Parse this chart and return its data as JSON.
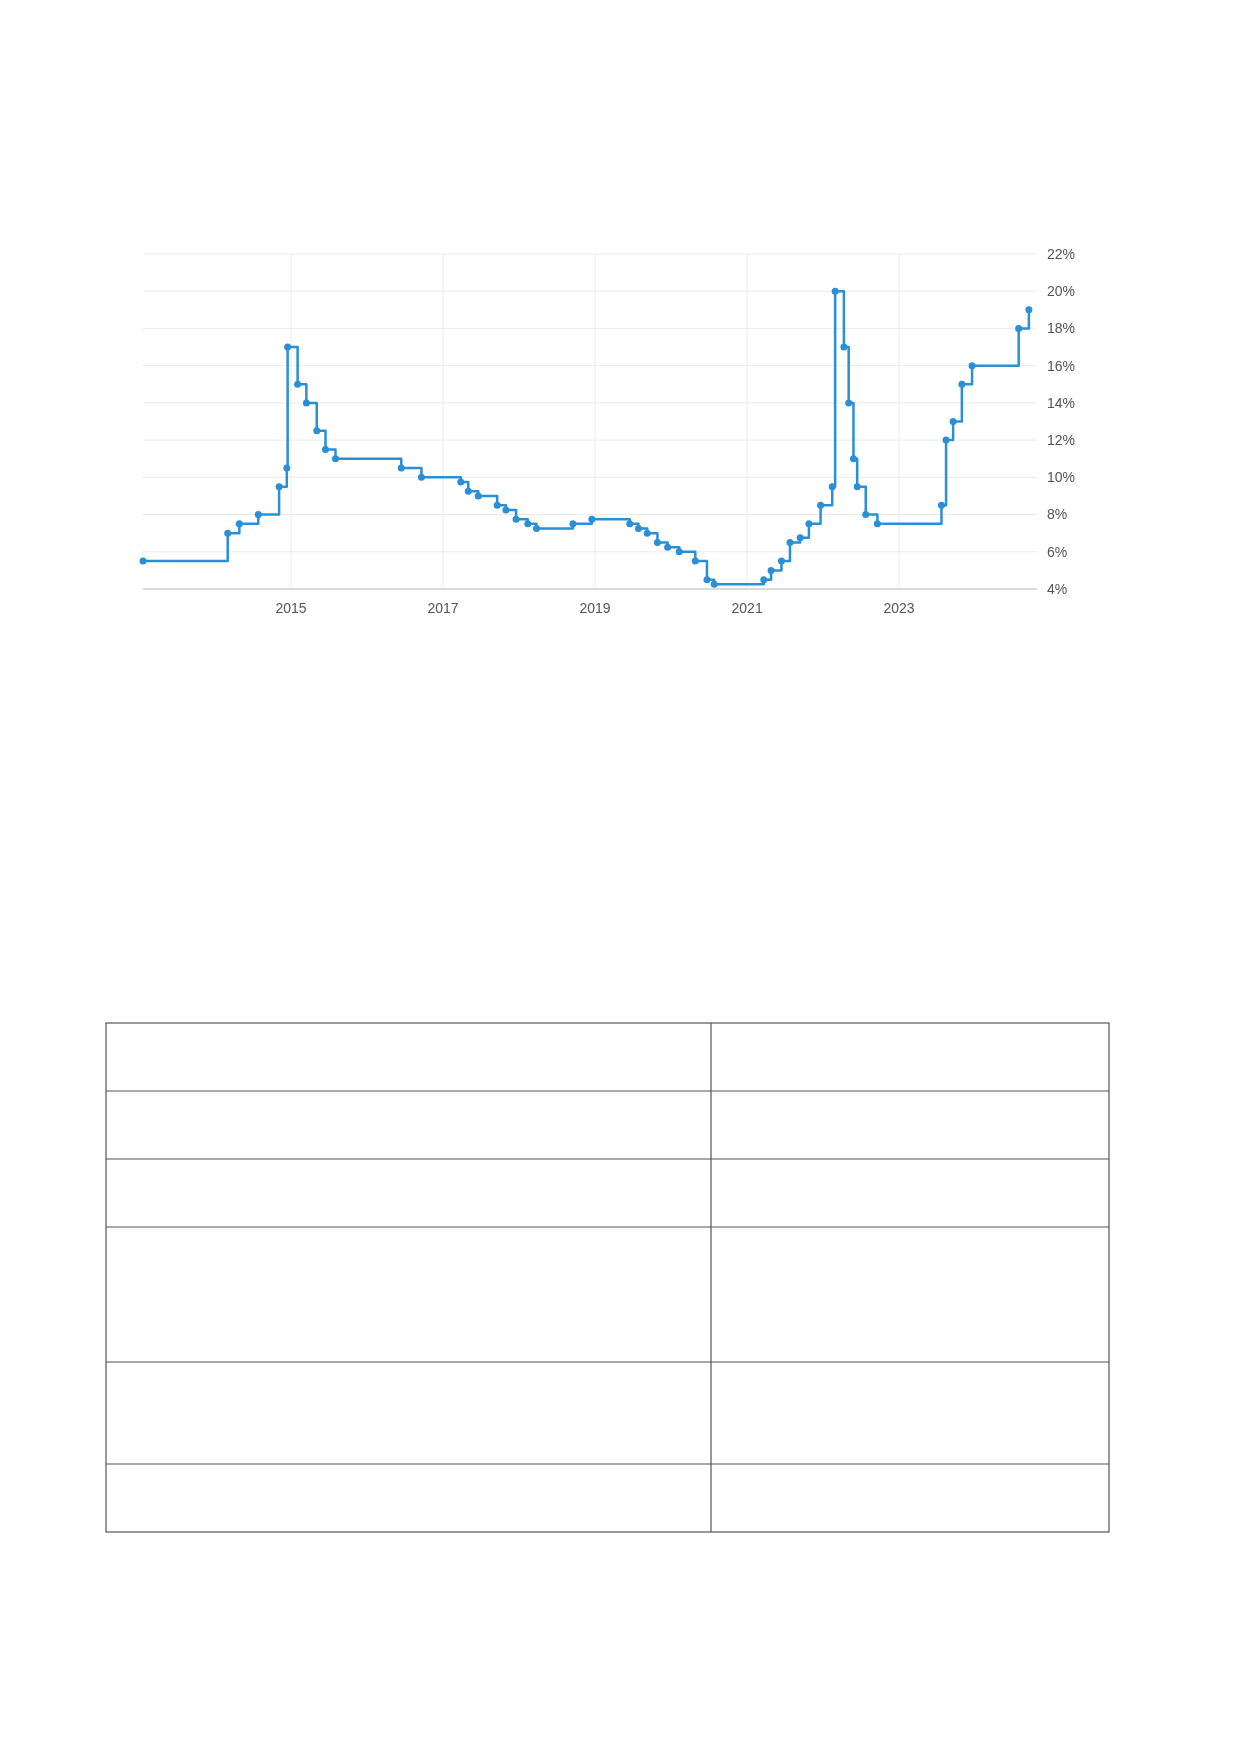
{
  "chart_data": {
    "type": "step",
    "x": [
      "2013-01-20",
      "2014-03-03",
      "2014-04-28",
      "2014-07-28",
      "2014-11-05",
      "2014-12-12",
      "2014-12-16",
      "2015-02-02",
      "2015-03-16",
      "2015-05-05",
      "2015-06-16",
      "2015-08-03",
      "2016-06-14",
      "2016-09-19",
      "2017-03-27",
      "2017-05-02",
      "2017-06-19",
      "2017-09-18",
      "2017-10-30",
      "2017-12-18",
      "2018-02-12",
      "2018-03-26",
      "2018-09-17",
      "2018-12-17",
      "2019-06-17",
      "2019-07-29",
      "2019-09-09",
      "2019-10-28",
      "2019-12-16",
      "2020-02-10",
      "2020-04-27",
      "2020-06-22",
      "2020-07-27",
      "2021-03-22",
      "2021-04-26",
      "2021-06-15",
      "2021-07-26",
      "2021-09-13",
      "2021-10-25",
      "2021-12-20",
      "2022-02-14",
      "2022-02-28",
      "2022-04-11",
      "2022-05-04",
      "2022-05-27",
      "2022-06-14",
      "2022-07-25",
      "2022-09-19",
      "2023-07-24",
      "2023-08-15",
      "2023-09-18",
      "2023-10-30",
      "2023-12-18",
      "2024-07-29",
      "2024-09-16"
    ],
    "series": [
      {
        "color": "#2b8fd6",
        "values": [
          5.5,
          7,
          7.5,
          8,
          9.5,
          10.5,
          17,
          15,
          14,
          12.5,
          11.5,
          11,
          10.5,
          10,
          9.75,
          9.25,
          9,
          8.5,
          8.25,
          7.75,
          7.5,
          7.25,
          7.5,
          7.75,
          7.5,
          7.25,
          7,
          6.5,
          6.25,
          6,
          5.5,
          4.5,
          4.25,
          4.5,
          5,
          5.5,
          6.5,
          6.75,
          7.5,
          8.5,
          9.5,
          20,
          17,
          14,
          11,
          9.5,
          8,
          7.5,
          8.5,
          12,
          13,
          15,
          16,
          18,
          19
        ]
      }
    ],
    "xlim": [
      "2013-01-20",
      "2024-10-25"
    ],
    "xticks": [
      "2015",
      "2017",
      "2019",
      "2021",
      "2023"
    ],
    "ylim": [
      4,
      22
    ],
    "yticks": [
      {
        "value": 4,
        "label": "4%"
      },
      {
        "value": 6,
        "label": "6%"
      },
      {
        "value": 8,
        "label": "8%"
      },
      {
        "value": 10,
        "label": "10%"
      },
      {
        "value": 12,
        "label": "12%"
      },
      {
        "value": 14,
        "label": "14%"
      },
      {
        "value": 16,
        "label": "16%"
      },
      {
        "value": 18,
        "label": "18%"
      },
      {
        "value": 20,
        "label": "20%"
      },
      {
        "value": 22,
        "label": "22%"
      }
    ],
    "grid": true,
    "marker": "circle",
    "line_style": "solid"
  }
}
